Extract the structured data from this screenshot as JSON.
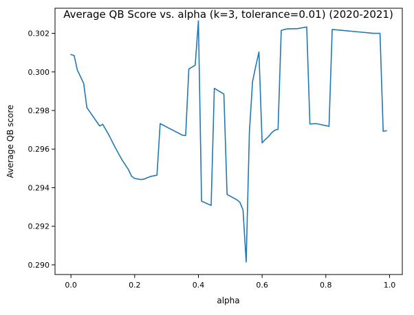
{
  "chart_data": {
    "type": "line",
    "title": "Average QB Score vs. alpha (k=3, tolerance=0.01) (2020-2021)",
    "xlabel": "alpha",
    "ylabel": "Average QB score",
    "xlim": [
      -0.05,
      1.04
    ],
    "ylim": [
      0.2895,
      0.3033
    ],
    "xticks": [
      0.0,
      0.2,
      0.4,
      0.6,
      0.8,
      1.0
    ],
    "xtick_labels": [
      "0.0",
      "0.2",
      "0.4",
      "0.6",
      "0.8",
      "1.0"
    ],
    "yticks": [
      0.29,
      0.292,
      0.294,
      0.296,
      0.298,
      0.3,
      0.302
    ],
    "ytick_labels": [
      "0.290",
      "0.292",
      "0.294",
      "0.296",
      "0.298",
      "0.300",
      "0.302"
    ],
    "grid": false,
    "legend": "none",
    "series": [
      {
        "color": "#1f77b4",
        "x": [
          0.0,
          0.01,
          0.02,
          0.04,
          0.05,
          0.09,
          0.1,
          0.12,
          0.14,
          0.16,
          0.18,
          0.19,
          0.2,
          0.22,
          0.23,
          0.24,
          0.25,
          0.27,
          0.28,
          0.35,
          0.36,
          0.37,
          0.39,
          0.4,
          0.41,
          0.44,
          0.45,
          0.48,
          0.49,
          0.52,
          0.53,
          0.54,
          0.55,
          0.56,
          0.57,
          0.58,
          0.59,
          0.6,
          0.61,
          0.62,
          0.63,
          0.64,
          0.65,
          0.66,
          0.67,
          0.68,
          0.7,
          0.71,
          0.74,
          0.75,
          0.77,
          0.81,
          0.82,
          0.95,
          0.97,
          0.98,
          0.99
        ],
        "y": [
          0.3009,
          0.30085,
          0.3001,
          0.2994,
          0.29815,
          0.2972,
          0.29728,
          0.2967,
          0.29605,
          0.29545,
          0.29495,
          0.2946,
          0.29448,
          0.29442,
          0.29445,
          0.29452,
          0.29458,
          0.29465,
          0.29732,
          0.29672,
          0.2967,
          0.30015,
          0.30035,
          0.30265,
          0.2933,
          0.29308,
          0.29915,
          0.29885,
          0.29365,
          0.29338,
          0.29325,
          0.29285,
          0.29015,
          0.29685,
          0.2995,
          0.3003,
          0.30103,
          0.29632,
          0.2965,
          0.29665,
          0.29685,
          0.29698,
          0.29703,
          0.30215,
          0.3022,
          0.30223,
          0.30224,
          0.30224,
          0.30233,
          0.2973,
          0.29732,
          0.29718,
          0.3022,
          0.302,
          0.302,
          0.29692,
          0.29695
        ]
      }
    ]
  }
}
